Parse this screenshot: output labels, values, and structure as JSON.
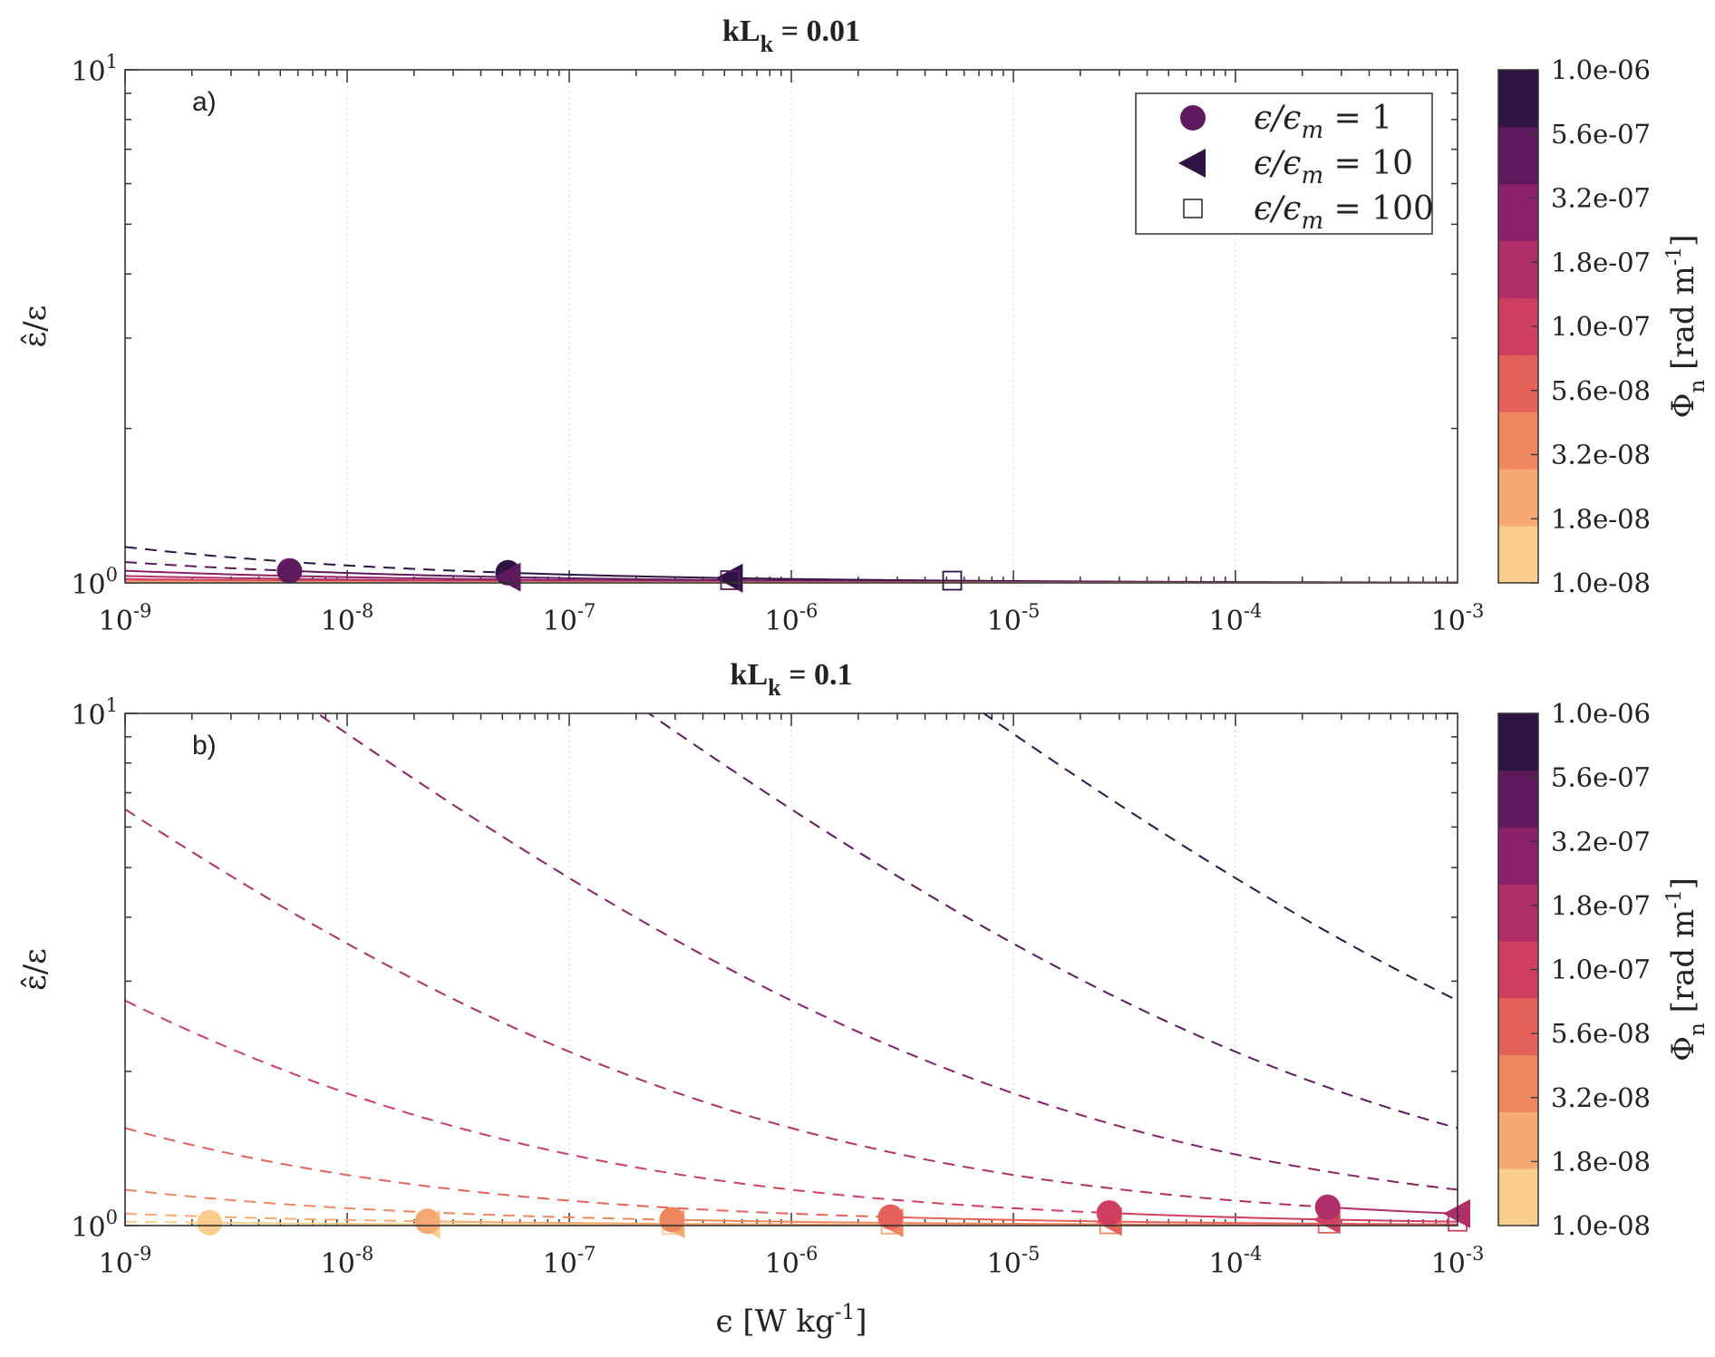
{
  "chart_data": [
    {
      "type": "line",
      "panel_label": "a)",
      "title": "kL",
      "title_sub": "k",
      "title_value": "= 0.01",
      "x_scale": "log",
      "y_scale": "log",
      "xlim": [
        1e-09,
        0.001
      ],
      "ylim": [
        1,
        10
      ],
      "xtick_base": "10",
      "xtick_exponents": [
        "-9",
        "-8",
        "-7",
        "-6",
        "-5",
        "-4",
        "-3"
      ],
      "ytick_base": "10",
      "ytick_exponents": [
        "0",
        "1"
      ],
      "ylabel": "ε̂/ε",
      "xlabel": "",
      "grid": "x-major dotted",
      "legend": {
        "position": "top-right",
        "entries": [
          {
            "marker": "circle",
            "label_parts": [
              "ϵ/ϵ",
              "m",
              " = 1"
            ]
          },
          {
            "marker": "triangle-left",
            "label_parts": [
              "ϵ/ϵ",
              "m",
              " = 10"
            ]
          },
          {
            "marker": "square-open",
            "label_parts": [
              "ϵ/ϵ",
              "m",
              " = 100"
            ]
          }
        ]
      },
      "colorbar": {
        "label": "Φ",
        "label_sub": "n",
        "label_unit": "[rad m",
        "label_unit_sup": "-1",
        "label_unit_end": "]",
        "ticks": [
          "1.0e-08",
          "1.8e-08",
          "3.2e-08",
          "5.6e-08",
          "1.0e-07",
          "1.8e-07",
          "3.2e-07",
          "5.6e-07",
          "1.0e-06"
        ],
        "colors": [
          "#f9cd8b",
          "#f6a972",
          "#ee8660",
          "#e4625a",
          "#cf3f5f",
          "#b02f69",
          "#8b2169",
          "#5e1a5c",
          "#2e1443"
        ]
      },
      "series": [
        {
          "name": "Φn = 1.0e-06",
          "color": "#2e1443",
          "c": 0.175,
          "dash_until": 5.3e-08,
          "markers": [
            {
              "type": "circle",
              "x": 5.3e-08
            },
            {
              "type": "triangle",
              "x": 5.3e-07
            },
            {
              "type": "square",
              "x": 5.3e-06
            }
          ]
        },
        {
          "name": "Φn = 5.6e-07",
          "color": "#5e1a5c",
          "c": 0.098,
          "dash_until": 5.5e-09,
          "markers": [
            {
              "type": "circle",
              "x": 5.5e-09
            },
            {
              "type": "triangle",
              "x": 5.3e-08
            },
            {
              "type": "square",
              "x": 5.3e-07
            }
          ]
        },
        {
          "name": "Φn = 3.2e-07",
          "color": "#8b2169",
          "c": 0.056,
          "dash_until": null,
          "markers": []
        },
        {
          "name": "Φn = 1.8e-07",
          "color": "#b02f69",
          "c": 0.0315,
          "dash_until": null,
          "markers": []
        },
        {
          "name": "Φn = 1.0e-07",
          "color": "#cf3f5f",
          "c": 0.0175,
          "dash_until": null,
          "markers": []
        },
        {
          "name": "Φn = 5.6e-08",
          "color": "#e4625a",
          "c": 0.0098,
          "dash_until": null,
          "markers": []
        },
        {
          "name": "Φn = 3.2e-08",
          "color": "#ee8660",
          "c": 0.0056,
          "dash_until": null,
          "markers": []
        },
        {
          "name": "Φn = 1.8e-08",
          "color": "#f6a972",
          "c": 0.00315,
          "dash_until": null,
          "markers": []
        },
        {
          "name": "Φn = 1.0e-08",
          "color": "#f9cd8b",
          "c": 0.00175,
          "dash_until": null,
          "markers": []
        }
      ]
    },
    {
      "type": "line",
      "panel_label": "b)",
      "title": "kL",
      "title_sub": "k",
      "title_value": "= 0.1",
      "x_scale": "log",
      "y_scale": "log",
      "xlim": [
        1e-09,
        0.001
      ],
      "ylim": [
        1,
        10
      ],
      "xtick_base": "10",
      "xtick_exponents": [
        "-9",
        "-8",
        "-7",
        "-6",
        "-5",
        "-4",
        "-3"
      ],
      "ytick_base": "10",
      "ytick_exponents": [
        "0",
        "1"
      ],
      "ylabel": "ε̂/ε",
      "xlabel": "ϵ [W kg",
      "xlabel_sup": "-1",
      "xlabel_end": "]",
      "grid": "x-major dotted",
      "colorbar": {
        "label": "Φ",
        "label_sub": "n",
        "label_unit": "[rad m",
        "label_unit_sup": "-1",
        "label_unit_end": "]",
        "ticks": [
          "1.0e-08",
          "1.8e-08",
          "3.2e-08",
          "5.6e-08",
          "1.0e-07",
          "1.8e-07",
          "3.2e-07",
          "5.6e-07",
          "1.0e-06"
        ],
        "colors": [
          "#f9cd8b",
          "#f6a972",
          "#ee8660",
          "#e4625a",
          "#cf3f5f",
          "#b02f69",
          "#8b2169",
          "#5e1a5c",
          "#2e1443"
        ]
      },
      "series": [
        {
          "name": "Φn = 1.0e-08",
          "color": "#f9cd8b",
          "c": 0.0175,
          "dash_until": 2.4e-09,
          "markers": [
            {
              "type": "circle",
              "x": 2.4e-09
            },
            {
              "type": "triangle",
              "x": 2.3e-08
            },
            {
              "type": "square",
              "x": 2.9e-07
            }
          ]
        },
        {
          "name": "Φn = 1.8e-08",
          "color": "#f6a972",
          "c": 0.055,
          "dash_until": 2.3e-08,
          "markers": [
            {
              "type": "circle",
              "x": 2.3e-08
            },
            {
              "type": "triangle",
              "x": 2.9e-07
            },
            {
              "type": "square",
              "x": 2.8e-06
            }
          ]
        },
        {
          "name": "Φn = 3.2e-08",
          "color": "#ee8660",
          "c": 0.175,
          "dash_until": 2.9e-07,
          "markers": [
            {
              "type": "circle",
              "x": 2.9e-07
            },
            {
              "type": "triangle",
              "x": 2.8e-06
            },
            {
              "type": "square",
              "x": 2.7e-05
            }
          ]
        },
        {
          "name": "Φn = 5.6e-08",
          "color": "#e4625a",
          "c": 0.55,
          "dash_until": 2.8e-06,
          "markers": [
            {
              "type": "circle",
              "x": 2.8e-06
            },
            {
              "type": "triangle",
              "x": 2.7e-05
            },
            {
              "type": "square",
              "x": 0.00026
            }
          ]
        },
        {
          "name": "Φn = 1.0e-07",
          "color": "#cf3f5f",
          "c": 1.75,
          "dash_until": 2.7e-05,
          "markers": [
            {
              "type": "circle",
              "x": 2.7e-05
            },
            {
              "type": "triangle",
              "x": 0.00026
            },
            {
              "type": "square",
              "x": 0.001
            }
          ]
        },
        {
          "name": "Φn = 1.8e-07",
          "color": "#b02f69",
          "c": 5.5,
          "dash_until": 0.00026,
          "markers": [
            {
              "type": "circle",
              "x": 0.00026
            },
            {
              "type": "triangle",
              "x": 0.001
            }
          ]
        },
        {
          "name": "Φn = 3.2e-07",
          "color": "#8b2169",
          "c": 17.5,
          "dash_until": 0.001,
          "markers": []
        },
        {
          "name": "Φn = 5.6e-07",
          "color": "#5e1a5c",
          "c": 55,
          "dash_until": 0.001,
          "markers": []
        },
        {
          "name": "Φn = 1.0e-06",
          "color": "#2e1443",
          "c": 175,
          "dash_until": 0.001,
          "markers": []
        }
      ]
    }
  ]
}
